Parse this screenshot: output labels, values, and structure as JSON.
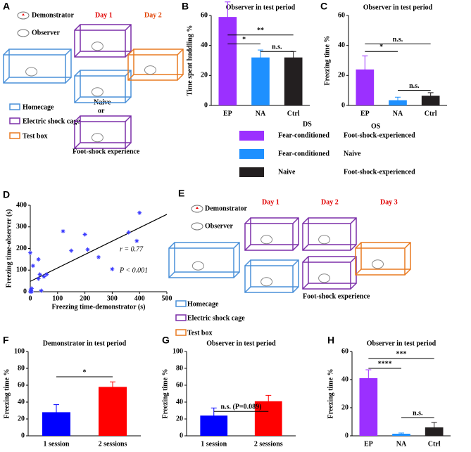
{
  "diagram_a": {
    "panel": "A",
    "demonstrator": "Demonstrator",
    "observer": "Observer",
    "day1": "Day 1",
    "day2": "Day 2",
    "naive": "Naive",
    "or": "or",
    "foot_shock": "Foot-shock experience",
    "legend": [
      "Homecage",
      "Electric shock cage",
      "Test box"
    ]
  },
  "legend_table": {
    "headers": [
      "DS",
      "OS"
    ],
    "rows": [
      {
        "color": "#9b30ff",
        "ds": "Fear-conditioned",
        "os": "Foot-shock-experienced"
      },
      {
        "color": "#1e90ff",
        "ds": "Fear-conditioned",
        "os": "Naive"
      },
      {
        "color": "#231f20",
        "ds": "Naive",
        "os": "Foot-shock-experienced"
      }
    ]
  },
  "diagram_e": {
    "panel": "E",
    "demonstrator": "Demonstrator",
    "observer": "Observer",
    "day1": "Day 1",
    "day2": "Day 2",
    "day3": "Day 3",
    "foot_shock": "Foot-shock experience",
    "legend": [
      "Homecage",
      "Electric shock cage",
      "Test box"
    ]
  },
  "chart_data": [
    {
      "type": "bar",
      "panel": "B",
      "title": "Observer in test period",
      "ylabel": "Time spent huddling %",
      "categories": [
        "EP",
        "NA",
        "Ctrl"
      ],
      "values": [
        59,
        32,
        32
      ],
      "errors": [
        10,
        5,
        4
      ],
      "colors": [
        "#9b30ff",
        "#1e90ff",
        "#231f20"
      ],
      "ylim": [
        0,
        60
      ],
      "yticks": [
        0,
        20,
        40,
        60
      ],
      "annotations": [
        "**",
        "*",
        "n.s."
      ]
    },
    {
      "type": "bar",
      "panel": "C",
      "title": "Observer in test period",
      "ylabel": "Freezing time %",
      "categories": [
        "EP",
        "NA",
        "Ctrl"
      ],
      "values": [
        24,
        3.5,
        6.5
      ],
      "errors": [
        9,
        2,
        2
      ],
      "colors": [
        "#9b30ff",
        "#1e90ff",
        "#231f20"
      ],
      "ylim": [
        0,
        60
      ],
      "yticks": [
        0,
        20,
        40,
        60
      ],
      "annotations": [
        "n.s.",
        "*",
        "n.s."
      ]
    },
    {
      "type": "scatter",
      "panel": "D",
      "xlabel": "Freezing time-demonstrator (s)",
      "ylabel": "Freezing time-observer (s)",
      "x": [
        0,
        2,
        3,
        5,
        5,
        10,
        30,
        30,
        35,
        40,
        50,
        60,
        120,
        150,
        200,
        210,
        250,
        300,
        360,
        390,
        400,
        0
      ],
      "y": [
        180,
        10,
        5,
        15,
        0,
        120,
        150,
        60,
        80,
        5,
        70,
        80,
        280,
        190,
        265,
        195,
        160,
        105,
        275,
        235,
        365,
        0
      ],
      "color": "#3a3aff",
      "xlim": [
        0,
        500
      ],
      "xticks": [
        0,
        100,
        200,
        300,
        400,
        500
      ],
      "ylim": [
        0,
        400
      ],
      "yticks": [
        0,
        100,
        200,
        300,
        400
      ],
      "trendline": {
        "x": [
          0,
          500
        ],
        "y": [
          48,
          358
        ]
      },
      "annotations": [
        "r = 0.77",
        "P < 0.001"
      ]
    },
    {
      "type": "bar",
      "panel": "F",
      "title": "Demonstrator in test period",
      "ylabel": "Freezing time %",
      "categories": [
        "1 session",
        "2 sessions"
      ],
      "values": [
        28,
        58
      ],
      "errors": [
        9,
        6
      ],
      "colors": [
        "#0000ff",
        "#ff0000"
      ],
      "ylim": [
        0,
        100
      ],
      "yticks": [
        0,
        20,
        40,
        60,
        80,
        100
      ],
      "annotations": [
        "*"
      ]
    },
    {
      "type": "bar",
      "panel": "G",
      "title": "Observer in test period",
      "ylabel": "Freezing time %",
      "categories": [
        "1 session",
        "2 sessions"
      ],
      "values": [
        24,
        41
      ],
      "errors": [
        9,
        7
      ],
      "colors": [
        "#0000ff",
        "#ff0000"
      ],
      "ylim": [
        0,
        100
      ],
      "yticks": [
        0,
        20,
        40,
        60,
        80,
        100
      ],
      "annotations": [
        "n.s. (P=0.089)"
      ]
    },
    {
      "type": "bar",
      "panel": "H",
      "title": "Observer in test period",
      "ylabel": "Freezing time %",
      "categories": [
        "EP",
        "NA",
        "Ctrl"
      ],
      "values": [
        41,
        1.5,
        6
      ],
      "errors": [
        6,
        0.5,
        3.5
      ],
      "colors": [
        "#9b30ff",
        "#1e90ff",
        "#231f20"
      ],
      "ylim": [
        0,
        60
      ],
      "yticks": [
        0,
        20,
        40,
        60
      ],
      "annotations": [
        "****",
        "***",
        "n.s."
      ]
    }
  ]
}
